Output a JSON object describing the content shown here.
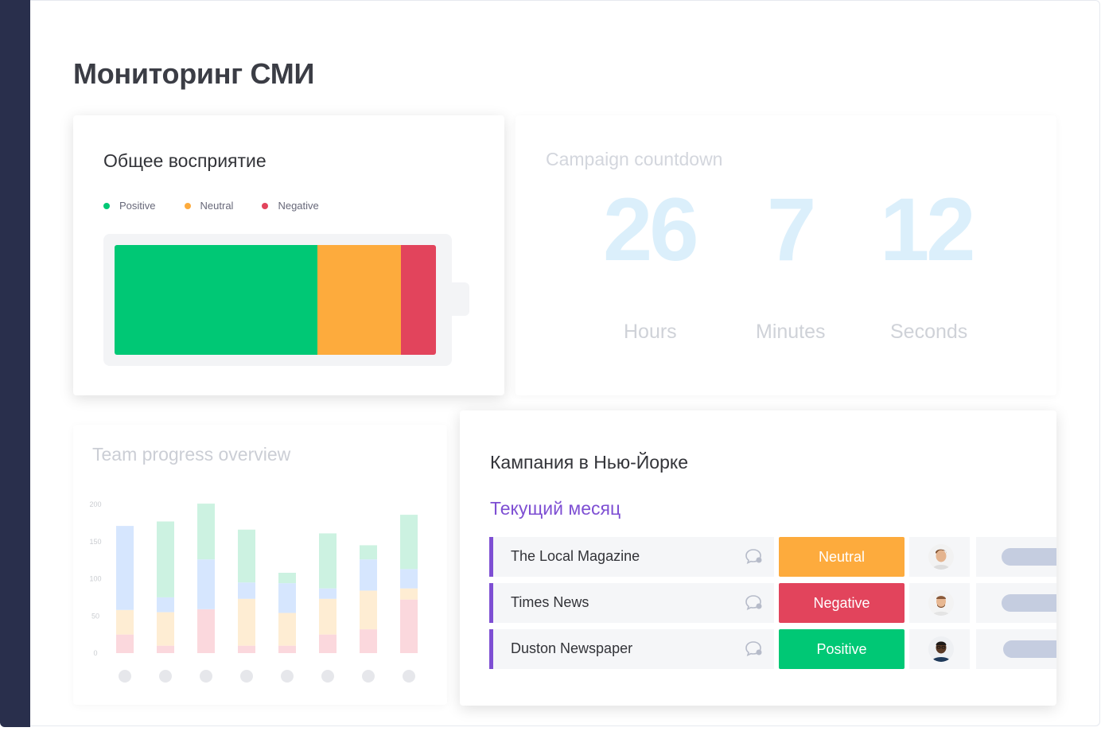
{
  "page": {
    "title": "Мониторинг СМИ"
  },
  "sentiment": {
    "title": "Общее восприятие",
    "legend": [
      {
        "label": "Positive",
        "color": "#00c875"
      },
      {
        "label": "Neutral",
        "color": "#fdab3d"
      },
      {
        "label": "Negative",
        "color": "#e2445c"
      }
    ],
    "shares": [
      0.63,
      0.26,
      0.11
    ]
  },
  "countdown": {
    "title": "Campaign countdown",
    "hours": "26",
    "minutes": "7",
    "seconds": "12",
    "hours_label": "Hours",
    "minutes_label": "Minutes",
    "seconds_label": "Seconds"
  },
  "team": {
    "title": "Team progress overview",
    "chart_data": {
      "type": "bar",
      "stacked": true,
      "y_ticks": [
        "200",
        "150",
        "100",
        "50",
        "0"
      ],
      "ylim": [
        0,
        200
      ],
      "bars": [
        [
          25,
          33,
          113,
          0
        ],
        [
          10,
          45,
          20,
          102
        ],
        [
          59,
          0,
          67,
          75
        ],
        [
          10,
          63,
          22,
          71
        ],
        [
          10,
          44,
          40,
          14
        ],
        [
          25,
          48,
          14,
          74
        ],
        [
          32,
          52,
          42,
          19
        ],
        [
          72,
          15,
          26,
          73
        ]
      ],
      "colors": [
        "#e2445c",
        "#fdab3d",
        "#579bfc",
        "#00c875"
      ]
    }
  },
  "campaign": {
    "title": "Кампания в Нью-Йорке",
    "group_title": "Текущий месяц",
    "rows": [
      {
        "name": "The Local Magazine",
        "status": "Neutral",
        "status_color": "#fdab3d"
      },
      {
        "name": "Times News",
        "status": "Negative",
        "status_color": "#e2445c"
      },
      {
        "name": "Duston Newspaper",
        "status": "Positive",
        "status_color": "#00c875"
      }
    ]
  }
}
